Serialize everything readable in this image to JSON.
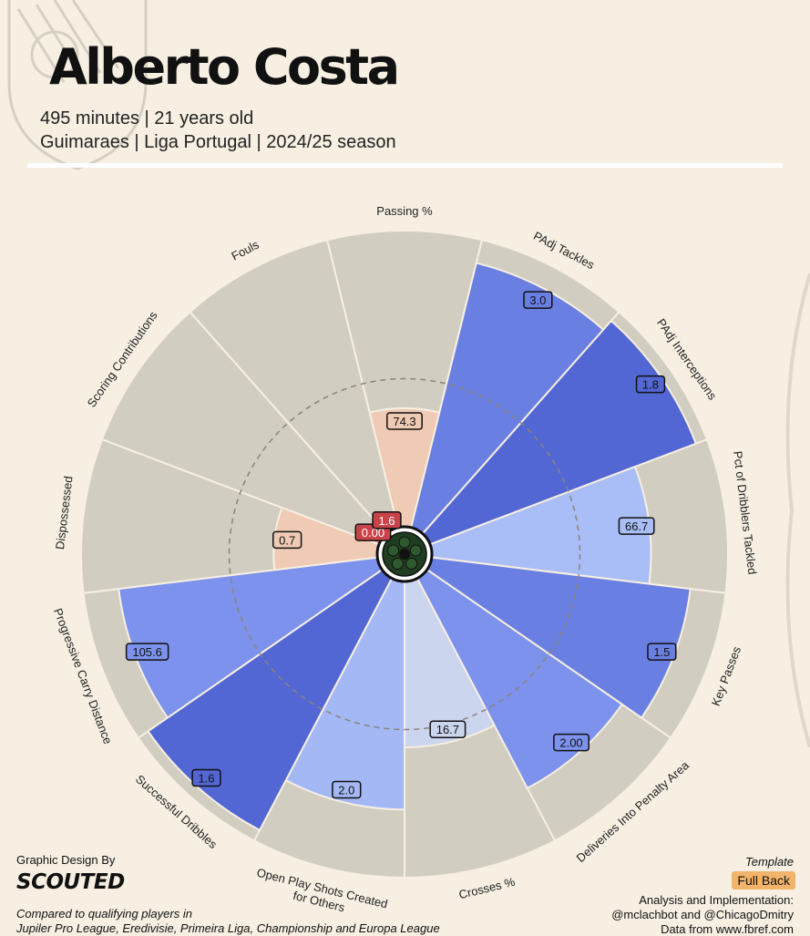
{
  "header": {
    "player_name": "Alberto Costa",
    "minutes_age": "495 minutes | 21 years old",
    "club_league_season": "Guimaraes | Liga Portugal | 2024/25 season"
  },
  "footer": {
    "design_credit": "Graphic Design By",
    "brand": "SCOUTED",
    "comparison_line1": "Compared to qualifying players in",
    "comparison_line2": "Jupiler Pro League, Eredivisie, Primeira Liga, Championship and Europa League",
    "template_label": "Template",
    "template_value": "Full Back",
    "analysis_credit": "Analysis and Implementation:",
    "analysis_names": "@mclachbot and @ChicagoDmitry",
    "data_source": "Data from www.fbref.com"
  },
  "chart_data": {
    "type": "radar-pizza",
    "value_scale": "percentile rank (0-100)",
    "reference_ring_percentile": 50,
    "categories": [
      {
        "label": "Passing %",
        "value": "74.3",
        "percentile": 40,
        "color": "#efcab4"
      },
      {
        "label": "PAdj Tackles",
        "value": "3.0",
        "percentile": 92,
        "color": "#6a7fe2"
      },
      {
        "label": "PAdj Interceptions",
        "value": "1.8",
        "percentile": 96,
        "color": "#5266d4"
      },
      {
        "label": "Pct of Dribblers Tackled",
        "value": "66.7",
        "percentile": 74,
        "color": "#a9bdf6"
      },
      {
        "label": "Key Passes",
        "value": "1.5",
        "percentile": 88,
        "color": "#6a7fe2"
      },
      {
        "label": "Deliveries Into Penalty Area",
        "value": "2.00",
        "percentile": 80,
        "color": "#7c92ec"
      },
      {
        "label": "Crosses %",
        "value": "16.7",
        "percentile": 56,
        "color": "#ccd5ee"
      },
      {
        "label": "Open Play Shots Created\nfor Others",
        "value": "2.0",
        "percentile": 77,
        "color": "#a4b8f5"
      },
      {
        "label": "Successful Dribbles",
        "value": "1.6",
        "percentile": 96,
        "color": "#5266d4"
      },
      {
        "label": "Progressive Carry Distance",
        "value": "105.6",
        "percentile": 88,
        "color": "#7c92ec"
      },
      {
        "label": "Dispossessed",
        "value": "0.7",
        "percentile": 35,
        "color": "#efcab4"
      },
      {
        "label": "Scoring Contributions",
        "value": "0.00",
        "percentile": 2,
        "color": "#ef9e98"
      },
      {
        "label": "Fouls",
        "value": "1.6",
        "percentile": 5,
        "color": "#ef9e98"
      }
    ],
    "colors": {
      "background": "#f6efe2",
      "wedge_background": "#d2cdc1",
      "low_value_badge": "#c9434b"
    }
  }
}
